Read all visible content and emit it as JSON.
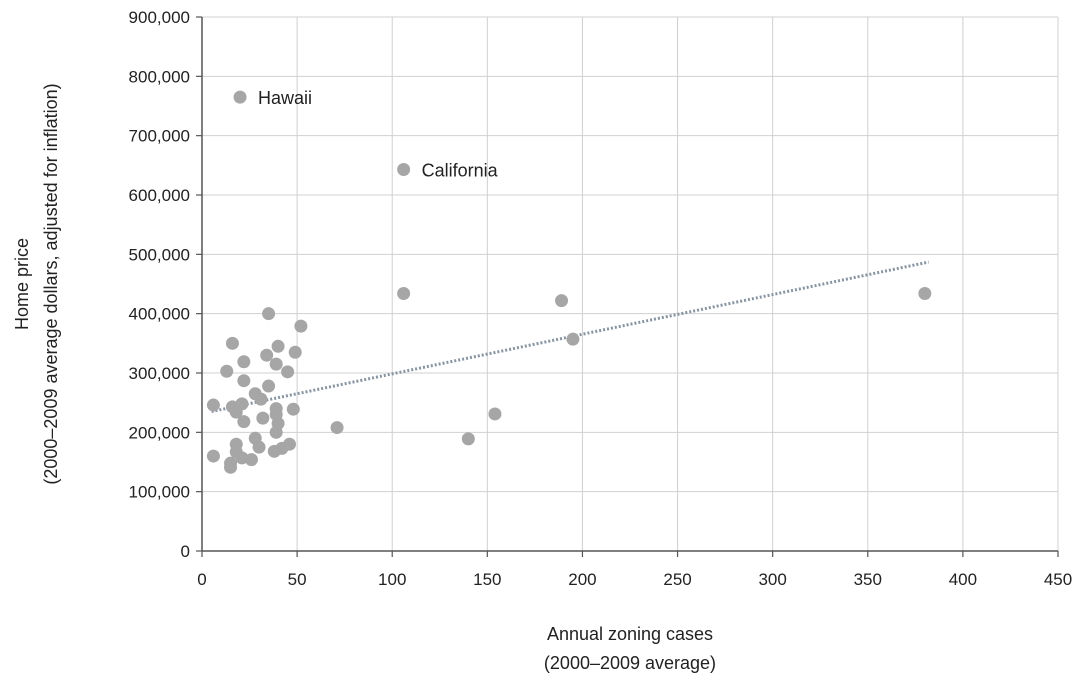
{
  "chart_data": {
    "type": "scatter",
    "xlabel": [
      "Annual zoning cases",
      "(2000–2009 average)"
    ],
    "ylabel": [
      "Home price",
      "(2000–2009 average dollars, adjusted for inflation)"
    ],
    "xlim": [
      0,
      450
    ],
    "ylim": [
      0,
      900000
    ],
    "x_ticks": [
      0,
      50,
      100,
      150,
      200,
      250,
      300,
      350,
      400,
      450
    ],
    "y_ticks": [
      0,
      100000,
      200000,
      300000,
      400000,
      500000,
      600000,
      700000,
      800000,
      900000
    ],
    "x_tick_labels": [
      "0",
      "50",
      "100",
      "150",
      "200",
      "250",
      "300",
      "350",
      "400",
      "450"
    ],
    "y_tick_labels": [
      "0",
      "100,000",
      "200,000",
      "300,000",
      "400,000",
      "500,000",
      "600,000",
      "700,000",
      "800,000",
      "900,000"
    ],
    "grid": true,
    "colors": {
      "points": "#a6a6a6",
      "trend": "#8794a2",
      "grid": "#d0d0d0",
      "axis": "#555555"
    },
    "points": [
      {
        "x": 20,
        "y": 765000,
        "label": "Hawaii"
      },
      {
        "x": 106,
        "y": 643000,
        "label": "California"
      },
      {
        "x": 6,
        "y": 246000
      },
      {
        "x": 6,
        "y": 160000
      },
      {
        "x": 13,
        "y": 303000
      },
      {
        "x": 15,
        "y": 148000
      },
      {
        "x": 15,
        "y": 141000
      },
      {
        "x": 16,
        "y": 350000
      },
      {
        "x": 16,
        "y": 243000
      },
      {
        "x": 18,
        "y": 234000
      },
      {
        "x": 18,
        "y": 180000
      },
      {
        "x": 18,
        "y": 167000
      },
      {
        "x": 21,
        "y": 248000
      },
      {
        "x": 21,
        "y": 157000
      },
      {
        "x": 22,
        "y": 319000
      },
      {
        "x": 22,
        "y": 287000
      },
      {
        "x": 22,
        "y": 218000
      },
      {
        "x": 26,
        "y": 154000
      },
      {
        "x": 28,
        "y": 265000
      },
      {
        "x": 28,
        "y": 190000
      },
      {
        "x": 30,
        "y": 175000
      },
      {
        "x": 31,
        "y": 256000
      },
      {
        "x": 32,
        "y": 224000
      },
      {
        "x": 34,
        "y": 330000
      },
      {
        "x": 35,
        "y": 400000
      },
      {
        "x": 35,
        "y": 278000
      },
      {
        "x": 38,
        "y": 168000
      },
      {
        "x": 39,
        "y": 315000
      },
      {
        "x": 39,
        "y": 240000
      },
      {
        "x": 39,
        "y": 230000
      },
      {
        "x": 39,
        "y": 200000
      },
      {
        "x": 40,
        "y": 345000
      },
      {
        "x": 40,
        "y": 215000
      },
      {
        "x": 42,
        "y": 173000
      },
      {
        "x": 45,
        "y": 302000
      },
      {
        "x": 46,
        "y": 180000
      },
      {
        "x": 48,
        "y": 239000
      },
      {
        "x": 49,
        "y": 335000
      },
      {
        "x": 52,
        "y": 379000
      },
      {
        "x": 71,
        "y": 208000
      },
      {
        "x": 106,
        "y": 434000
      },
      {
        "x": 140,
        "y": 189000
      },
      {
        "x": 154,
        "y": 231000
      },
      {
        "x": 189,
        "y": 422000
      },
      {
        "x": 195,
        "y": 357000
      },
      {
        "x": 380,
        "y": 434000
      }
    ],
    "trendline": {
      "style": "dotted",
      "x": [
        5,
        382
      ],
      "y": [
        235000,
        487000
      ]
    }
  }
}
